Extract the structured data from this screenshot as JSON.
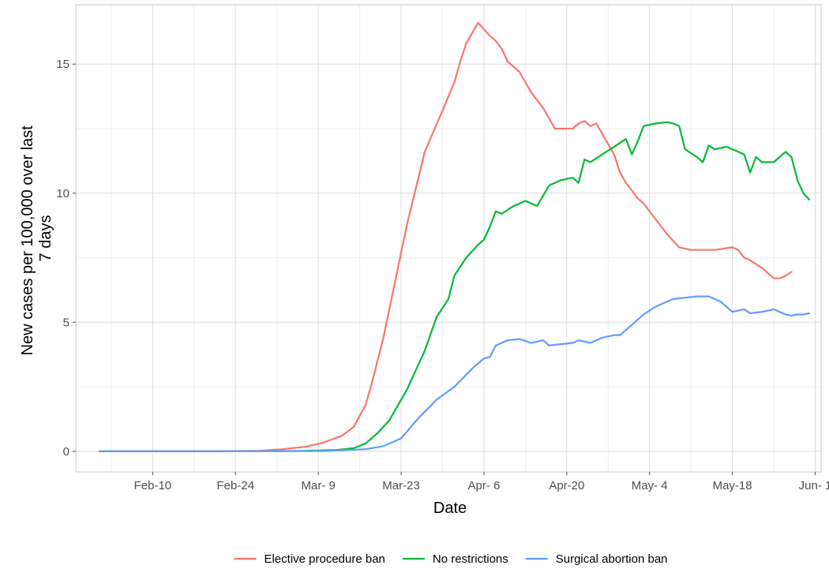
{
  "chart_data": {
    "type": "line",
    "title": "",
    "xlabel": "Date",
    "ylabel": "New cases per 100,000 over last 7 days",
    "ylabel_lines": [
      "New cases per 100,000 over last",
      "7 days"
    ],
    "x_tick_labels": [
      "Feb-10",
      "Feb-24",
      "Mar- 9",
      "Mar-23",
      "Apr- 6",
      "Apr-20",
      "May- 4",
      "May-18",
      "Jun- 1"
    ],
    "x_tick_dates": [
      "2020-02-10",
      "2020-02-24",
      "2020-03-09",
      "2020-03-23",
      "2020-04-06",
      "2020-04-20",
      "2020-05-04",
      "2020-05-18",
      "2020-06-01"
    ],
    "xlim": [
      "2020-01-28",
      "2020-06-02"
    ],
    "y_ticks": [
      0,
      5,
      10,
      15
    ],
    "ylim": [
      -0.8,
      17.3
    ],
    "grid": true,
    "legend_position": "bottom",
    "series": [
      {
        "name": "Elective procedure ban",
        "color": "#F8766D",
        "x": [
          "2020-02-01",
          "2020-02-10",
          "2020-02-20",
          "2020-02-28",
          "2020-03-03",
          "2020-03-07",
          "2020-03-10",
          "2020-03-13",
          "2020-03-15",
          "2020-03-17",
          "2020-03-18",
          "2020-03-19",
          "2020-03-20",
          "2020-03-22",
          "2020-03-24",
          "2020-03-27",
          "2020-03-30",
          "2020-04-01",
          "2020-04-02",
          "2020-04-03",
          "2020-04-05",
          "2020-04-07",
          "2020-04-08",
          "2020-04-09",
          "2020-04-10",
          "2020-04-12",
          "2020-04-14",
          "2020-04-16",
          "2020-04-18",
          "2020-04-21",
          "2020-04-22",
          "2020-04-23",
          "2020-04-24",
          "2020-04-25",
          "2020-04-26",
          "2020-04-28",
          "2020-04-29",
          "2020-04-30",
          "2020-05-01",
          "2020-05-02",
          "2020-05-03",
          "2020-05-05",
          "2020-05-07",
          "2020-05-09",
          "2020-05-11",
          "2020-05-13",
          "2020-05-15",
          "2020-05-18",
          "2020-05-19",
          "2020-05-20",
          "2020-05-21",
          "2020-05-23",
          "2020-05-25",
          "2020-05-26",
          "2020-05-27",
          "2020-05-28"
        ],
        "values": [
          0,
          0,
          0,
          0.02,
          0.08,
          0.18,
          0.35,
          0.6,
          0.95,
          1.8,
          2.6,
          3.5,
          4.4,
          6.6,
          8.8,
          11.6,
          13.2,
          14.3,
          15.1,
          15.8,
          16.6,
          16.1,
          15.9,
          15.6,
          15.1,
          14.7,
          13.9,
          13.3,
          12.5,
          12.5,
          12.7,
          12.8,
          12.6,
          12.7,
          12.3,
          11.5,
          10.8,
          10.4,
          10.1,
          9.8,
          9.6,
          9.0,
          8.4,
          7.9,
          7.8,
          7.8,
          7.8,
          7.9,
          7.8,
          7.5,
          7.4,
          7.1,
          6.7,
          6.7,
          6.8,
          6.95
        ]
      },
      {
        "name": "No restrictions",
        "color": "#00BA38",
        "x": [
          "2020-02-01",
          "2020-02-10",
          "2020-02-20",
          "2020-03-05",
          "2020-03-12",
          "2020-03-15",
          "2020-03-17",
          "2020-03-19",
          "2020-03-21",
          "2020-03-24",
          "2020-03-27",
          "2020-03-29",
          "2020-03-31",
          "2020-04-01",
          "2020-04-03",
          "2020-04-05",
          "2020-04-06",
          "2020-04-07",
          "2020-04-08",
          "2020-04-09",
          "2020-04-11",
          "2020-04-13",
          "2020-04-15",
          "2020-04-17",
          "2020-04-19",
          "2020-04-21",
          "2020-04-22",
          "2020-04-23",
          "2020-04-24",
          "2020-04-26",
          "2020-04-28",
          "2020-04-30",
          "2020-05-01",
          "2020-05-02",
          "2020-05-03",
          "2020-05-05",
          "2020-05-07",
          "2020-05-08",
          "2020-05-09",
          "2020-05-10",
          "2020-05-12",
          "2020-05-13",
          "2020-05-14",
          "2020-05-15",
          "2020-05-17",
          "2020-05-19",
          "2020-05-20",
          "2020-05-21",
          "2020-05-22",
          "2020-05-23",
          "2020-05-25",
          "2020-05-27",
          "2020-05-28",
          "2020-05-29",
          "2020-05-30",
          "2020-05-31"
        ],
        "values": [
          0,
          0,
          0,
          0.01,
          0.05,
          0.12,
          0.3,
          0.7,
          1.2,
          2.4,
          3.9,
          5.2,
          5.9,
          6.8,
          7.5,
          8.0,
          8.2,
          8.7,
          9.3,
          9.2,
          9.5,
          9.7,
          9.5,
          10.3,
          10.5,
          10.6,
          10.4,
          11.3,
          11.2,
          11.5,
          11.8,
          12.1,
          11.5,
          12.0,
          12.6,
          12.7,
          12.75,
          12.7,
          12.6,
          11.7,
          11.4,
          11.2,
          11.85,
          11.7,
          11.8,
          11.6,
          11.5,
          10.8,
          11.4,
          11.2,
          11.2,
          11.6,
          11.4,
          10.5,
          10.0,
          9.75
        ]
      },
      {
        "name": "Surgical abortion ban",
        "color": "#619CFF",
        "x": [
          "2020-02-01",
          "2020-02-10",
          "2020-02-20",
          "2020-03-10",
          "2020-03-17",
          "2020-03-20",
          "2020-03-23",
          "2020-03-26",
          "2020-03-29",
          "2020-04-01",
          "2020-04-04",
          "2020-04-06",
          "2020-04-07",
          "2020-04-08",
          "2020-04-10",
          "2020-04-12",
          "2020-04-14",
          "2020-04-16",
          "2020-04-17",
          "2020-04-19",
          "2020-04-21",
          "2020-04-22",
          "2020-04-23",
          "2020-04-24",
          "2020-04-25",
          "2020-04-26",
          "2020-04-28",
          "2020-04-29",
          "2020-04-30",
          "2020-05-01",
          "2020-05-03",
          "2020-05-05",
          "2020-05-07",
          "2020-05-08",
          "2020-05-10",
          "2020-05-12",
          "2020-05-14",
          "2020-05-16",
          "2020-05-18",
          "2020-05-20",
          "2020-05-21",
          "2020-05-23",
          "2020-05-25",
          "2020-05-26",
          "2020-05-27",
          "2020-05-28",
          "2020-05-29",
          "2020-05-30",
          "2020-05-31"
        ],
        "values": [
          0,
          0,
          0,
          0.01,
          0.08,
          0.2,
          0.5,
          1.3,
          2.0,
          2.5,
          3.2,
          3.6,
          3.65,
          4.1,
          4.3,
          4.35,
          4.2,
          4.3,
          4.1,
          4.15,
          4.2,
          4.3,
          4.25,
          4.2,
          4.3,
          4.4,
          4.5,
          4.5,
          4.7,
          4.9,
          5.3,
          5.6,
          5.8,
          5.9,
          5.95,
          6.0,
          6.0,
          5.8,
          5.4,
          5.5,
          5.35,
          5.4,
          5.5,
          5.4,
          5.3,
          5.25,
          5.3,
          5.3,
          5.35
        ]
      }
    ]
  }
}
